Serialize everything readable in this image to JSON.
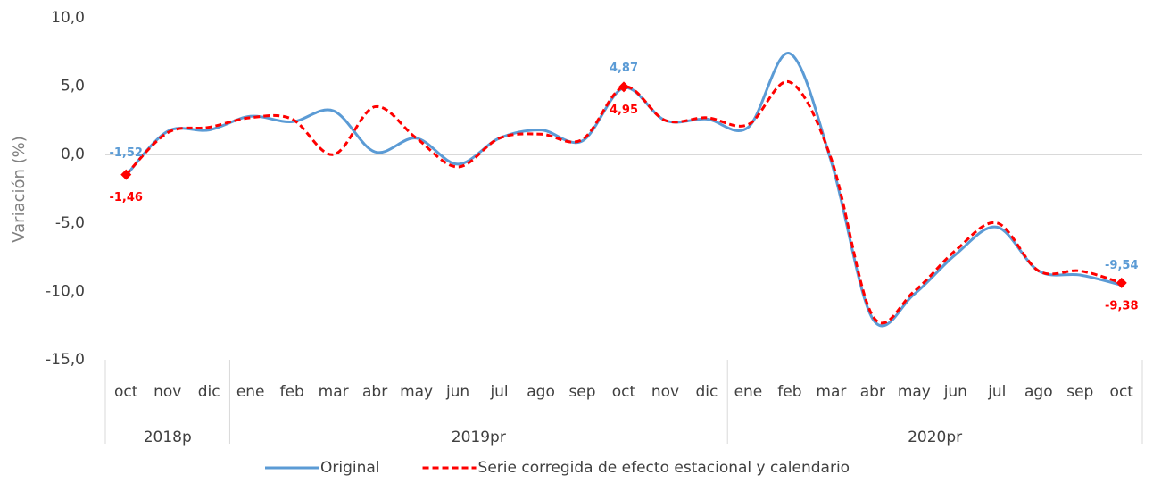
{
  "chart_data": {
    "type": "line",
    "ylabel": "Variación (%)",
    "category_groups": [
      {
        "name": "2018p",
        "categories": [
          "oct",
          "nov",
          "dic"
        ]
      },
      {
        "name": "2019pr",
        "categories": [
          "ene",
          "feb",
          "mar",
          "abr",
          "may",
          "jun",
          "jul",
          "ago",
          "sep",
          "oct",
          "nov",
          "dic"
        ]
      },
      {
        "name": "2020pr",
        "categories": [
          "ene",
          "feb",
          "mar",
          "abr",
          "may",
          "jun",
          "jul",
          "ago",
          "sep",
          "oct"
        ]
      }
    ],
    "series": [
      {
        "name": "Original",
        "color": "#5b9bd5",
        "dash": false,
        "values": [
          -1.52,
          1.7,
          1.8,
          2.8,
          2.4,
          3.2,
          0.2,
          1.2,
          -0.7,
          1.2,
          1.8,
          1.0,
          4.87,
          2.5,
          2.6,
          2.0,
          7.4,
          -0.5,
          -12.0,
          -10.2,
          -7.3,
          -5.3,
          -8.5,
          -8.8,
          -9.54
        ],
        "value_labels": [
          "-1,52",
          null,
          null,
          null,
          null,
          null,
          null,
          null,
          null,
          null,
          null,
          null,
          "4,87",
          null,
          null,
          null,
          null,
          null,
          null,
          null,
          null,
          null,
          null,
          null,
          "-9,54"
        ]
      },
      {
        "name": "Serie corregida de efecto estacional y calendario",
        "color": "#ff0000",
        "dash": true,
        "values": [
          -1.46,
          1.6,
          2.0,
          2.7,
          2.6,
          0.0,
          3.5,
          1.2,
          -0.9,
          1.2,
          1.5,
          1.1,
          4.95,
          2.5,
          2.7,
          2.2,
          5.3,
          -0.3,
          -11.8,
          -10.0,
          -7.0,
          -5.0,
          -8.5,
          -8.5,
          -9.38
        ],
        "value_labels": [
          "-1,46",
          null,
          null,
          null,
          null,
          null,
          null,
          null,
          null,
          null,
          null,
          null,
          "4,95",
          null,
          null,
          null,
          null,
          null,
          null,
          null,
          null,
          null,
          null,
          null,
          "-9,38"
        ]
      }
    ],
    "ylim": [
      -15,
      10
    ],
    "yticks": [
      {
        "value": -15,
        "label": "-15,0"
      },
      {
        "value": -10,
        "label": "-10,0"
      },
      {
        "value": -5,
        "label": "-5,0"
      },
      {
        "value": 0,
        "label": "0,0"
      },
      {
        "value": 5,
        "label": "5,0"
      },
      {
        "value": 10,
        "label": "10,0"
      }
    ],
    "legend": "bottom"
  }
}
